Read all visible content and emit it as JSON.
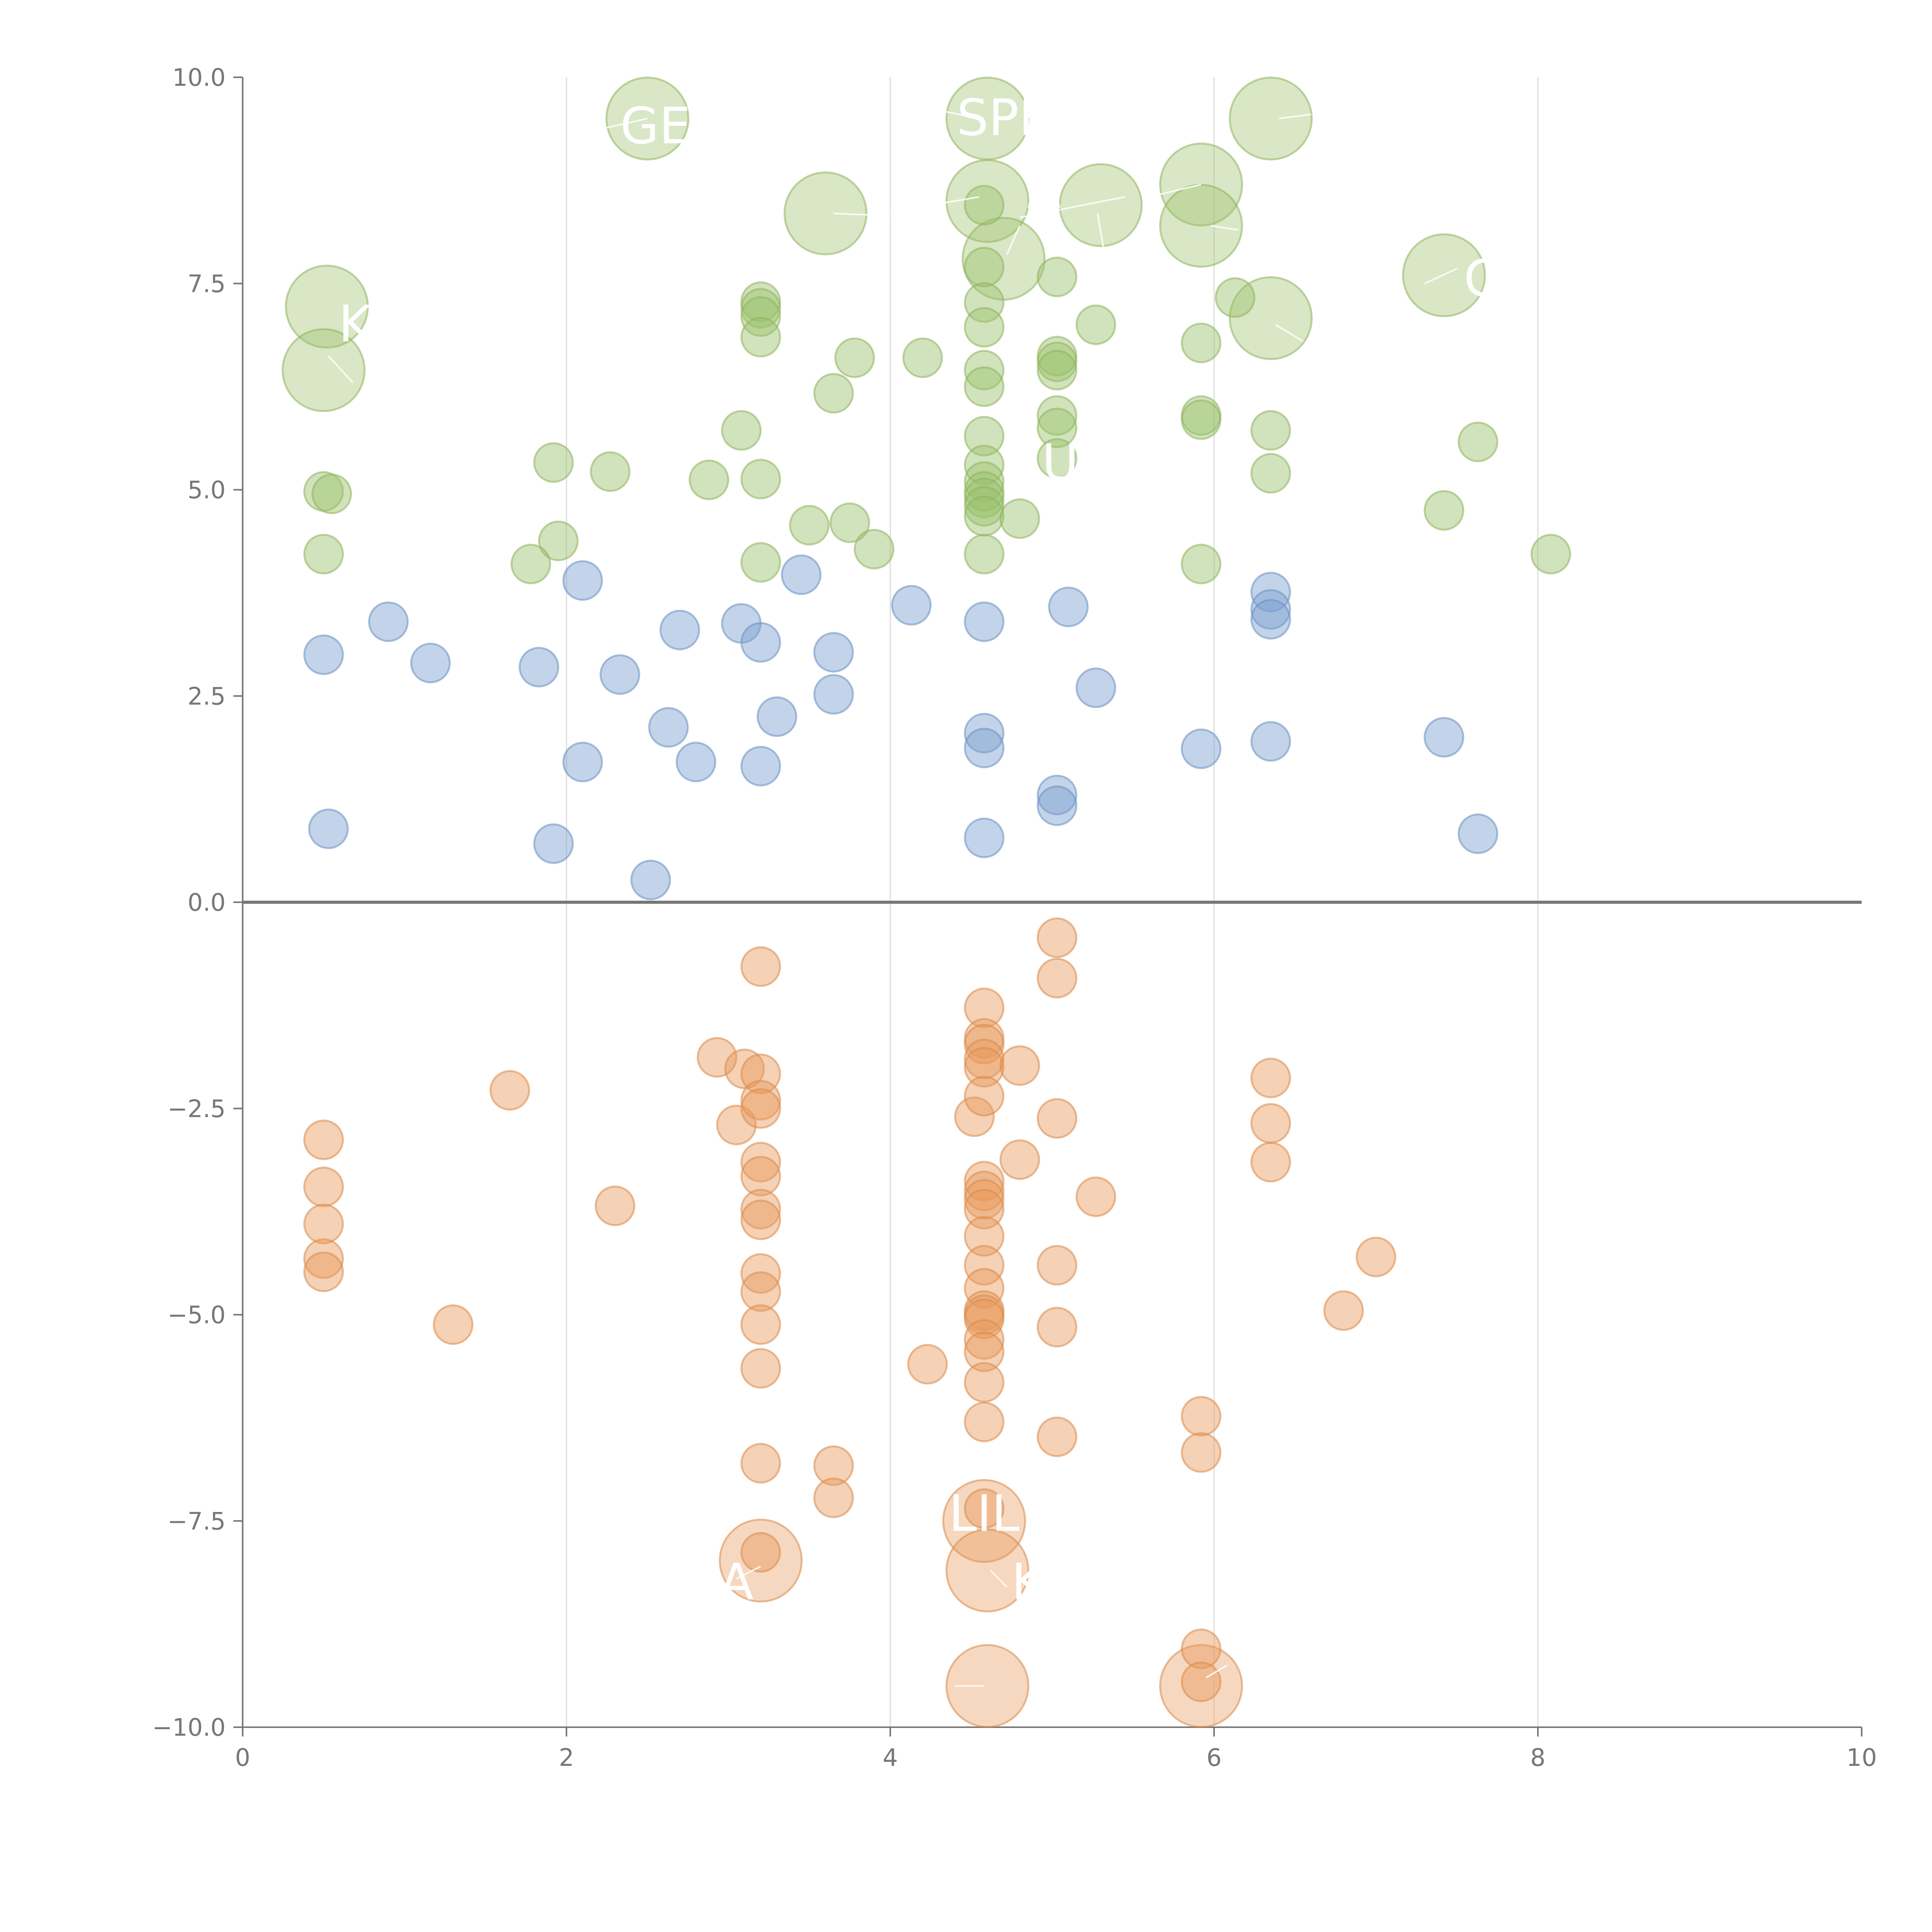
{
  "chart_data": {
    "type": "scatter",
    "title": "",
    "xlabel": "",
    "ylabel": "",
    "xlim": [
      0,
      10
    ],
    "ylim": [
      -10,
      10
    ],
    "x_ticks": [
      0,
      2,
      4,
      6,
      8,
      10
    ],
    "x_tick_labels": [
      "0",
      "2",
      "4",
      "6",
      "8",
      "10"
    ],
    "y_ticks": [
      10,
      7.5,
      5,
      2.5,
      0,
      -2.5,
      -5,
      -7.5,
      -10
    ],
    "y_tick_labels": [
      "10.0",
      "7.5",
      "5.0",
      "2.5",
      "0.0",
      "−2.5",
      "−5.0",
      "−7.5",
      "−10.0"
    ],
    "grid": "vertical",
    "series": [
      {
        "name": "green",
        "fill": "#9ac16a",
        "stroke": "#8fb35e",
        "points": [
          [
            0.52,
            7.22,
            "L"
          ],
          [
            0.5,
            6.45,
            "L"
          ],
          [
            2.5,
            9.5,
            "L"
          ],
          [
            3.6,
            8.35,
            "L"
          ],
          [
            4.6,
            9.5,
            "L"
          ],
          [
            4.6,
            8.5,
            "L"
          ],
          [
            4.7,
            7.8,
            "L"
          ],
          [
            5.3,
            8.45,
            "L"
          ],
          [
            5.92,
            8.7,
            "L"
          ],
          [
            5.92,
            8.2,
            "L"
          ],
          [
            6.35,
            9.5,
            "L"
          ],
          [
            6.35,
            7.08,
            "L"
          ],
          [
            7.42,
            7.6,
            "L"
          ],
          [
            0.5,
            4.98
          ],
          [
            0.55,
            4.95
          ],
          [
            0.5,
            4.22
          ],
          [
            1.92,
            5.33
          ],
          [
            1.95,
            4.38
          ],
          [
            1.78,
            4.1
          ],
          [
            2.27,
            5.22
          ],
          [
            2.88,
            5.12
          ],
          [
            3.08,
            5.72
          ],
          [
            3.2,
            7.28
          ],
          [
            3.2,
            7.2
          ],
          [
            3.2,
            7.1
          ],
          [
            3.2,
            6.85
          ],
          [
            3.2,
            5.13
          ],
          [
            3.2,
            4.12
          ],
          [
            3.5,
            4.57
          ],
          [
            3.65,
            6.17
          ],
          [
            3.78,
            6.6
          ],
          [
            3.75,
            4.6
          ],
          [
            3.9,
            4.28
          ],
          [
            4.2,
            6.6
          ],
          [
            4.58,
            8.45
          ],
          [
            4.58,
            7.7
          ],
          [
            4.58,
            7.27
          ],
          [
            4.58,
            6.97
          ],
          [
            4.58,
            6.45
          ],
          [
            4.58,
            6.25
          ],
          [
            4.58,
            5.65
          ],
          [
            4.58,
            5.3
          ],
          [
            4.58,
            5.1
          ],
          [
            4.58,
            4.98
          ],
          [
            4.58,
            4.9
          ],
          [
            4.58,
            4.8
          ],
          [
            4.58,
            4.68
          ],
          [
            4.58,
            4.22
          ],
          [
            4.8,
            4.65
          ],
          [
            5.03,
            7.58
          ],
          [
            5.03,
            6.62
          ],
          [
            5.03,
            6.55
          ],
          [
            5.03,
            6.45
          ],
          [
            5.03,
            5.9
          ],
          [
            5.03,
            5.75
          ],
          [
            5.03,
            5.38
          ],
          [
            5.27,
            7.0
          ],
          [
            5.92,
            6.78
          ],
          [
            5.92,
            5.9
          ],
          [
            5.92,
            5.85
          ],
          [
            5.92,
            4.1
          ],
          [
            6.13,
            7.33
          ],
          [
            6.35,
            5.72
          ],
          [
            6.35,
            5.2
          ],
          [
            7.42,
            4.75
          ],
          [
            7.63,
            5.58
          ],
          [
            8.08,
            4.22
          ]
        ]
      },
      {
        "name": "blue",
        "fill": "#7aa0d0",
        "stroke": "#6a90c0",
        "points": [
          [
            0.5,
            3.0
          ],
          [
            0.53,
            0.89
          ],
          [
            0.9,
            3.4
          ],
          [
            1.16,
            2.9
          ],
          [
            1.83,
            2.85
          ],
          [
            1.92,
            0.71
          ],
          [
            2.1,
            3.9
          ],
          [
            2.1,
            1.7
          ],
          [
            2.33,
            2.76
          ],
          [
            2.52,
            0.27
          ],
          [
            2.63,
            2.12
          ],
          [
            2.7,
            3.3
          ],
          [
            2.8,
            1.7
          ],
          [
            3.08,
            3.38
          ],
          [
            3.2,
            3.15
          ],
          [
            3.2,
            1.65
          ],
          [
            3.3,
            2.25
          ],
          [
            3.45,
            3.97
          ],
          [
            3.65,
            3.03
          ],
          [
            3.65,
            2.52
          ],
          [
            4.13,
            3.6
          ],
          [
            4.58,
            3.4
          ],
          [
            4.58,
            2.05
          ],
          [
            4.58,
            1.87
          ],
          [
            4.58,
            0.78
          ],
          [
            5.03,
            1.3
          ],
          [
            5.03,
            1.17
          ],
          [
            5.1,
            3.58
          ],
          [
            5.27,
            2.6
          ],
          [
            5.92,
            1.86
          ],
          [
            6.35,
            3.76
          ],
          [
            6.35,
            3.55
          ],
          [
            6.35,
            3.43
          ],
          [
            6.35,
            1.95
          ],
          [
            7.42,
            2.0
          ],
          [
            7.63,
            0.83
          ]
        ]
      },
      {
        "name": "orange",
        "fill": "#e8995a",
        "stroke": "#d98a4b",
        "points": [
          [
            3.2,
            -7.98,
            "L"
          ],
          [
            4.58,
            -7.5,
            "L"
          ],
          [
            4.6,
            -8.1,
            "L"
          ],
          [
            4.6,
            -9.5,
            "L"
          ],
          [
            5.92,
            -9.5,
            "L"
          ],
          [
            0.5,
            -2.88
          ],
          [
            0.5,
            -3.45
          ],
          [
            0.5,
            -3.9
          ],
          [
            0.5,
            -4.32
          ],
          [
            0.5,
            -4.48
          ],
          [
            1.3,
            -5.12
          ],
          [
            1.65,
            -2.28
          ],
          [
            2.3,
            -3.68
          ],
          [
            2.93,
            -1.88
          ],
          [
            3.05,
            -2.7
          ],
          [
            3.1,
            -2.02
          ],
          [
            3.2,
            -0.78
          ],
          [
            3.2,
            -2.08
          ],
          [
            3.2,
            -2.4
          ],
          [
            3.2,
            -2.5
          ],
          [
            3.2,
            -3.15
          ],
          [
            3.2,
            -3.32
          ],
          [
            3.2,
            -3.72
          ],
          [
            3.2,
            -3.85
          ],
          [
            3.2,
            -4.5
          ],
          [
            3.2,
            -4.72
          ],
          [
            3.2,
            -5.12
          ],
          [
            3.2,
            -5.65
          ],
          [
            3.2,
            -6.8
          ],
          [
            3.2,
            -7.88
          ],
          [
            3.65,
            -6.83
          ],
          [
            3.65,
            -7.22
          ],
          [
            4.23,
            -5.6
          ],
          [
            4.52,
            -2.6
          ],
          [
            4.58,
            -1.28
          ],
          [
            4.58,
            -1.65
          ],
          [
            4.58,
            -1.72
          ],
          [
            4.58,
            -1.9
          ],
          [
            4.58,
            -2.0
          ],
          [
            4.58,
            -2.35
          ],
          [
            4.58,
            -3.38
          ],
          [
            4.58,
            -3.5
          ],
          [
            4.58,
            -3.6
          ],
          [
            4.58,
            -3.72
          ],
          [
            4.58,
            -4.05
          ],
          [
            4.58,
            -4.4
          ],
          [
            4.58,
            -4.68
          ],
          [
            4.58,
            -4.95
          ],
          [
            4.58,
            -5.0
          ],
          [
            4.58,
            -5.05
          ],
          [
            4.58,
            -5.3
          ],
          [
            4.58,
            -5.45
          ],
          [
            4.58,
            -5.82
          ],
          [
            4.58,
            -6.3
          ],
          [
            4.58,
            -7.35
          ],
          [
            4.8,
            -1.98
          ],
          [
            4.8,
            -3.12
          ],
          [
            5.03,
            -0.43
          ],
          [
            5.03,
            -0.92
          ],
          [
            5.03,
            -2.62
          ],
          [
            5.03,
            -4.4
          ],
          [
            5.03,
            -5.15
          ],
          [
            5.03,
            -6.48
          ],
          [
            5.27,
            -3.57
          ],
          [
            5.92,
            -6.23
          ],
          [
            5.92,
            -6.67
          ],
          [
            5.92,
            -9.05
          ],
          [
            5.92,
            -9.45
          ],
          [
            6.35,
            -2.13
          ],
          [
            6.35,
            -2.68
          ],
          [
            6.35,
            -3.15
          ],
          [
            6.8,
            -4.95
          ],
          [
            7.0,
            -4.3
          ]
        ]
      }
    ],
    "annotations": [
      {
        "text": "KL"
      },
      {
        "text": "GE"
      },
      {
        "text": "SPE"
      },
      {
        "text": "A"
      },
      {
        "text": "C"
      },
      {
        "text": "U"
      },
      {
        "text": "LIL"
      },
      {
        "text": "A"
      },
      {
        "text": "K"
      }
    ]
  }
}
